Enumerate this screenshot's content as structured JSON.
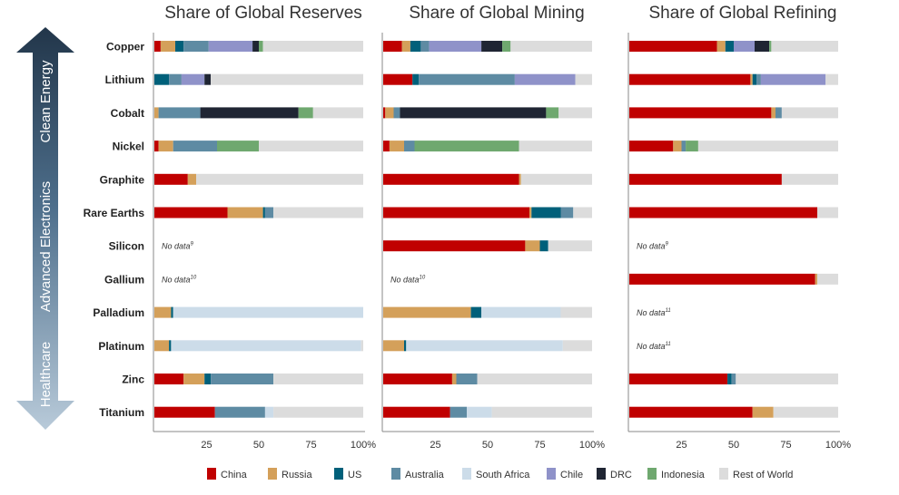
{
  "chart_data": {
    "type": "bar",
    "orientation": "horizontal",
    "stacked": true,
    "panels": [
      {
        "key": "reserves",
        "title": "Share of Global Reserves"
      },
      {
        "key": "mining",
        "title": "Share of Global Mining"
      },
      {
        "key": "refining",
        "title": "Share of Global Refining"
      }
    ],
    "categories": [
      "Copper",
      "Lithium",
      "Cobalt",
      "Nickel",
      "Graphite",
      "Rare Earths",
      "Silicon",
      "Gallium",
      "Palladium",
      "Platinum",
      "Zinc",
      "Titanium"
    ],
    "side_groups": [
      {
        "label": "Clean Energy"
      },
      {
        "label": "Advanced Electronics"
      },
      {
        "label": "Healthcare"
      }
    ],
    "x_ticks": [
      "25",
      "50",
      "75",
      "100%"
    ],
    "xlim": [
      0,
      100
    ],
    "legend": [
      {
        "name": "China",
        "color": "#c00000"
      },
      {
        "name": "Russia",
        "color": "#d4a05a"
      },
      {
        "name": "US",
        "color": "#00607a"
      },
      {
        "name": "Australia",
        "color": "#5e8ba3"
      },
      {
        "name": "South Africa",
        "color": "#ccdce9"
      },
      {
        "name": "Chile",
        "color": "#8f92c9"
      },
      {
        "name": "DRC",
        "color": "#1f2533"
      },
      {
        "name": "Indonesia",
        "color": "#6fa86f"
      },
      {
        "name": "Rest of World",
        "color": "#dcdcdc"
      }
    ],
    "series": [
      {
        "name": "China",
        "reserves": [
          3,
          0,
          0,
          2,
          16,
          35,
          null,
          null,
          0,
          0,
          14,
          29
        ],
        "mining": [
          9,
          14,
          1,
          3,
          65,
          70,
          68,
          null,
          0,
          0,
          33,
          32
        ],
        "refining": [
          42,
          58,
          68,
          21,
          73,
          90,
          null,
          89,
          null,
          null,
          47,
          59
        ]
      },
      {
        "name": "Russia",
        "reserves": [
          7,
          0,
          2,
          7,
          4,
          17,
          null,
          null,
          8,
          7,
          10,
          0
        ],
        "mining": [
          4,
          0,
          4,
          7,
          1,
          1,
          7,
          null,
          42,
          10,
          2,
          0
        ],
        "refining": [
          4,
          1,
          2,
          4,
          0,
          0,
          null,
          1,
          null,
          null,
          0,
          10
        ]
      },
      {
        "name": "US",
        "reserves": [
          4,
          7,
          0,
          0,
          0,
          1,
          null,
          null,
          1,
          1,
          3,
          0
        ],
        "mining": [
          5,
          3,
          0,
          0,
          0,
          14,
          4,
          null,
          5,
          1,
          0,
          0
        ],
        "refining": [
          4,
          2,
          0,
          0,
          0,
          0,
          null,
          0,
          null,
          null,
          2,
          0
        ]
      },
      {
        "name": "Australia",
        "reserves": [
          12,
          6,
          20,
          21,
          0,
          4,
          null,
          null,
          0,
          0,
          30,
          24
        ],
        "mining": [
          4,
          46,
          3,
          5,
          0,
          6,
          0,
          null,
          0,
          0,
          10,
          8
        ],
        "refining": [
          0,
          2,
          3,
          2,
          0,
          0,
          null,
          0,
          null,
          null,
          2,
          0
        ]
      },
      {
        "name": "South Africa",
        "reserves": [
          0,
          0,
          0,
          0,
          0,
          0,
          null,
          null,
          91,
          91,
          0,
          4
        ],
        "mining": [
          0,
          0,
          0,
          0,
          0,
          0,
          0,
          null,
          38,
          75,
          0,
          12
        ],
        "refining": [
          0,
          0,
          0,
          0,
          0,
          0,
          null,
          0,
          null,
          null,
          0,
          0
        ]
      },
      {
        "name": "Chile",
        "reserves": [
          21,
          11,
          0,
          0,
          0,
          0,
          null,
          null,
          0,
          0,
          0,
          0
        ],
        "mining": [
          25,
          29,
          0,
          0,
          0,
          0,
          0,
          null,
          0,
          0,
          0,
          0
        ],
        "refining": [
          10,
          31,
          0,
          0,
          0,
          0,
          null,
          0,
          null,
          null,
          0,
          0
        ]
      },
      {
        "name": "DRC",
        "reserves": [
          3,
          3,
          47,
          0,
          0,
          0,
          null,
          null,
          0,
          0,
          0,
          0
        ],
        "mining": [
          10,
          0,
          70,
          0,
          0,
          0,
          0,
          null,
          0,
          0,
          0,
          0
        ],
        "refining": [
          7,
          0,
          0,
          0,
          0,
          0,
          null,
          0,
          null,
          null,
          0,
          0
        ]
      },
      {
        "name": "Indonesia",
        "reserves": [
          2,
          0,
          7,
          20,
          0,
          0,
          null,
          null,
          0,
          0,
          0,
          0
        ],
        "mining": [
          4,
          0,
          6,
          50,
          0,
          0,
          0,
          null,
          0,
          0,
          0,
          0
        ],
        "refining": [
          1,
          0,
          0,
          6,
          0,
          0,
          null,
          0,
          null,
          null,
          0,
          0
        ]
      },
      {
        "name": "Rest of World",
        "reserves": [
          48,
          73,
          24,
          50,
          80,
          43,
          null,
          null,
          0,
          1,
          43,
          43
        ],
        "mining": [
          39,
          8,
          16,
          35,
          34,
          9,
          21,
          null,
          15,
          14,
          55,
          48
        ],
        "refining": [
          32,
          6,
          27,
          67,
          27,
          10,
          null,
          10,
          null,
          null,
          49,
          31
        ]
      }
    ],
    "no_data": [
      {
        "panel": "reserves",
        "category": "Silicon",
        "text": "No data",
        "note": "9"
      },
      {
        "panel": "reserves",
        "category": "Gallium",
        "text": "No data",
        "note": "10"
      },
      {
        "panel": "mining",
        "category": "Gallium",
        "text": "No data",
        "note": "10"
      },
      {
        "panel": "refining",
        "category": "Silicon",
        "text": "No data",
        "note": "9"
      },
      {
        "panel": "refining",
        "category": "Palladium",
        "text": "No data",
        "note": "11"
      },
      {
        "panel": "refining",
        "category": "Platinum",
        "text": "No data",
        "note": "11"
      }
    ]
  }
}
